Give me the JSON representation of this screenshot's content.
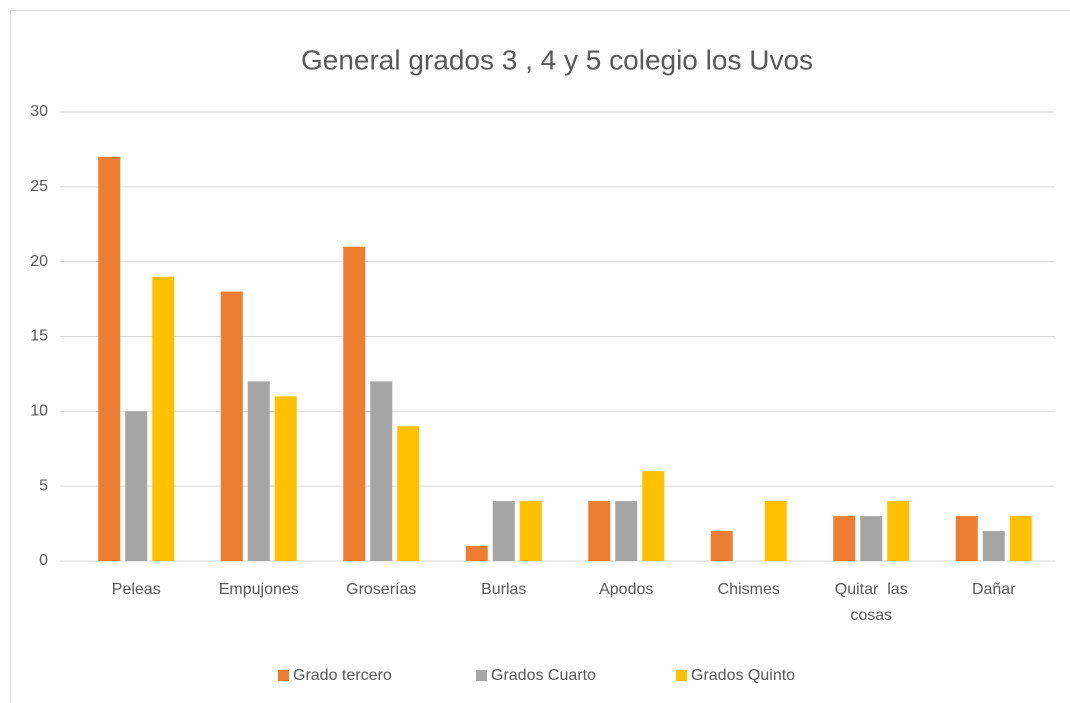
{
  "chart_data": {
    "type": "bar",
    "title": "General  grados  3 , 4 y 5 colegio los  Uvos",
    "categories": [
      "Peleas",
      "Empujones",
      "Groserías",
      "Burlas",
      "Apodos",
      "Chismes",
      "Quitar  las cosas",
      "Dañar"
    ],
    "series": [
      {
        "name": "Grado tercero",
        "color": "#ed7d31",
        "values": [
          27,
          18,
          21,
          1,
          4,
          2,
          3,
          3
        ]
      },
      {
        "name": "Grados  Cuarto",
        "color": "#a5a5a5",
        "values": [
          10,
          12,
          12,
          4,
          4,
          0,
          3,
          2
        ]
      },
      {
        "name": "Grados Quinto",
        "color": "#ffc000",
        "values": [
          19,
          11,
          9,
          4,
          6,
          4,
          4,
          3
        ]
      }
    ],
    "ylim": [
      0,
      30
    ],
    "yticks": [
      0,
      5,
      10,
      15,
      20,
      25,
      30
    ],
    "grid": true,
    "legend": "bottom"
  }
}
